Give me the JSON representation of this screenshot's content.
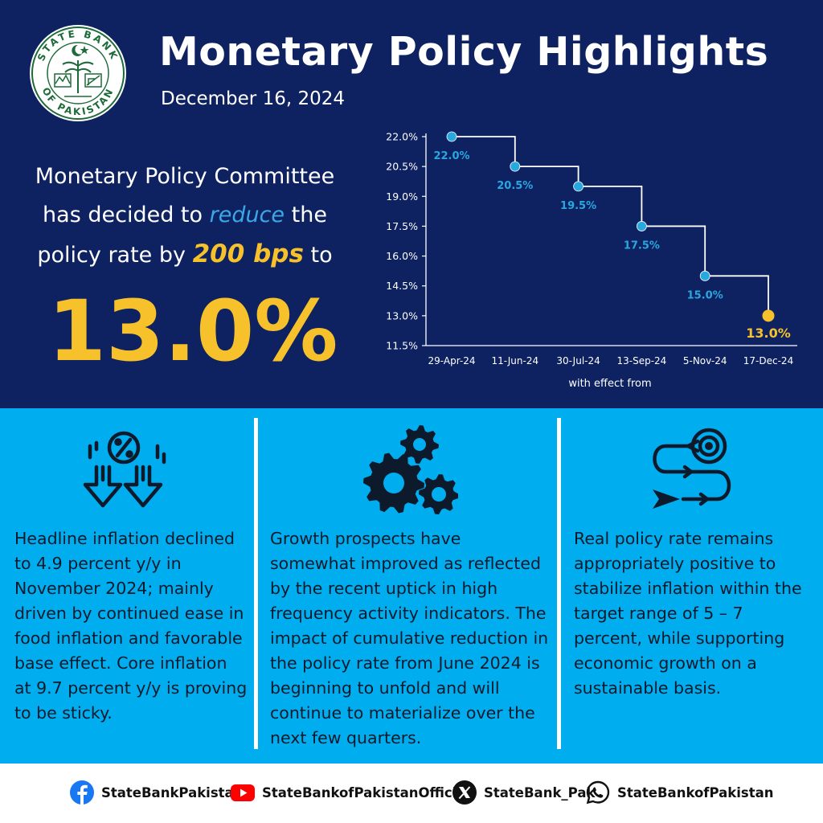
{
  "header": {
    "title": "Monetary Policy Highlights",
    "date": "December 16, 2024"
  },
  "logo": {
    "text_top": "STATE BANK",
    "text_bottom": "OF PAKISTAN"
  },
  "statement": {
    "line1": "Monetary Policy Committee",
    "line2_pre": "has decided to ",
    "line2_em": "reduce",
    "line2_post": " the",
    "line3_pre": "policy rate by ",
    "line3_em": "200 bps",
    "line3_post": " to",
    "rate": "13.0%"
  },
  "chart_data": {
    "type": "line",
    "step": true,
    "x": [
      "29-Apr-24",
      "11-Jun-24",
      "30-Jul-24",
      "13-Sep-24",
      "5-Nov-24",
      "17-Dec-24"
    ],
    "values": [
      22.0,
      20.5,
      19.5,
      17.5,
      15.0,
      13.0
    ],
    "data_labels": [
      "22.0%",
      "20.5%",
      "19.5%",
      "17.5%",
      "15.0%",
      "13.0%"
    ],
    "xlabel": "with effect from",
    "ylabel": "",
    "ylim": [
      11.5,
      22.0
    ],
    "yticks": [
      22.0,
      20.5,
      19.0,
      17.5,
      16.0,
      14.5,
      13.0,
      11.5
    ],
    "ytick_labels": [
      "22.0%",
      "20.5%",
      "19.0%",
      "17.5%",
      "16.0%",
      "14.5%",
      "13.0%",
      "11.5%"
    ],
    "colors": {
      "points": "#29a8e0",
      "last_point": "#f6c12a",
      "line": "#ffffff",
      "axis_text": "#ffffff"
    }
  },
  "columns": [
    {
      "icon": "inflation-down-icon",
      "text": "Headline inflation declined to 4.9 percent y/y in November 2024; mainly driven by continued ease in food inflation and favorable base effect. Core inflation at 9.7 percent y/y is proving to be sticky."
    },
    {
      "icon": "gears-icon",
      "text": "Growth prospects have somewhat improved as reflected by the recent uptick in high frequency activity indicators. The impact of cumulative reduction in the policy rate from June 2024 is beginning to unfold and will continue to materialize over the next few quarters."
    },
    {
      "icon": "target-path-icon",
      "text": "Real policy rate remains appropriately positive to stabilize inflation within the target range of 5 – 7 percent, while supporting economic growth on a sustainable basis."
    }
  ],
  "social": [
    {
      "icon": "facebook-icon",
      "handle": "StateBankPakistan"
    },
    {
      "icon": "youtube-icon",
      "handle": "StateBankofPakistanOfficial"
    },
    {
      "icon": "x-icon",
      "handle": "StateBank_Pak"
    },
    {
      "icon": "whatsapp-icon",
      "handle": "StateBankofPakistan"
    }
  ],
  "colors": {
    "navy": "#0e2261",
    "sky": "#00adef",
    "gold": "#f6c12a",
    "accent_blue": "#3aa8e6",
    "logo_green": "#1e6b3a"
  }
}
